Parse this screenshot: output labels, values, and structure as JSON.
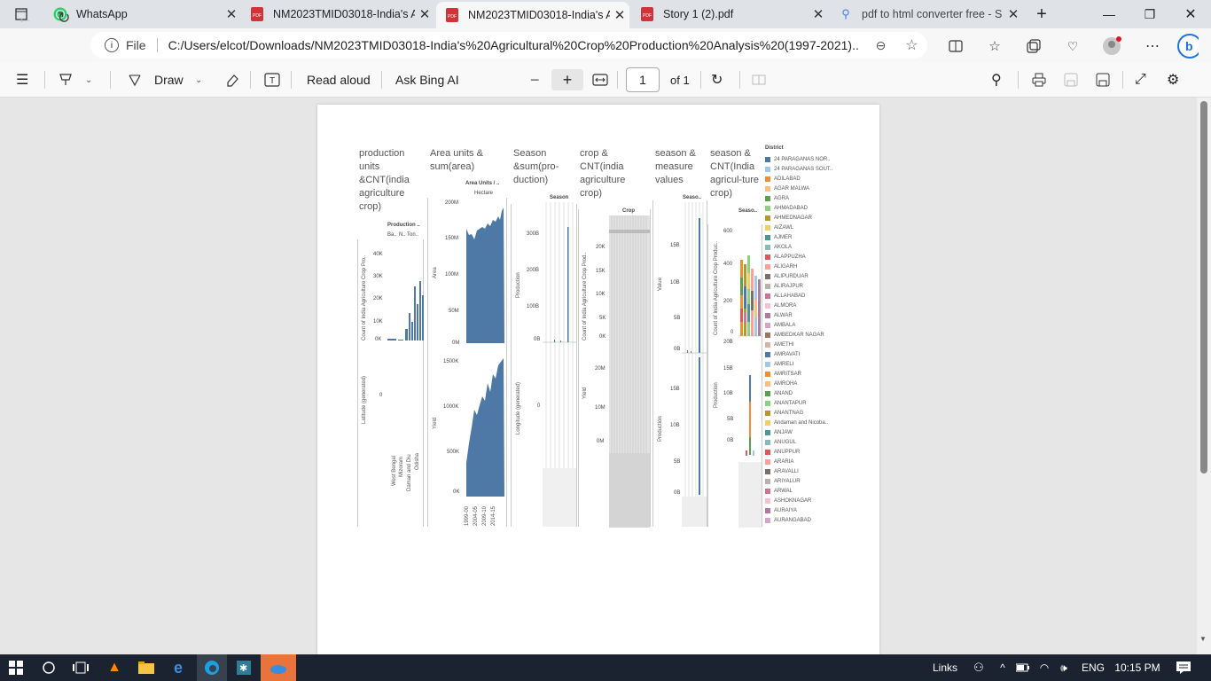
{
  "tabs": [
    {
      "title": "WhatsApp",
      "icon": "whatsapp-icon",
      "active": false
    },
    {
      "title": "NM2023TMID03018-India's A",
      "icon": "pdf-icon",
      "active": false
    },
    {
      "title": "NM2023TMID03018-India's A",
      "icon": "pdf-icon",
      "active": true
    },
    {
      "title": "Story 1 (2).pdf",
      "icon": "pdf-icon",
      "active": false
    },
    {
      "title": "pdf to html converter free - S",
      "icon": "search-icon",
      "active": false
    }
  ],
  "address": {
    "scheme_label": "File",
    "url": "C:/Users/elcot/Downloads/NM2023TMID03018-India's%20Agricultural%20Crop%20Production%20Analysis%20(1997-2021)..."
  },
  "pdf_toolbar": {
    "draw_label": "Draw",
    "read_aloud_label": "Read aloud",
    "ask_bing_label": "Ask Bing AI",
    "page_number": "1",
    "page_total": "of 1"
  },
  "dashboard": {
    "col1": {
      "title": "production units &CNT(india agriculture crop)",
      "header": "Production ..",
      "sub": [
        "Ba..",
        "N..",
        "Ton.."
      ],
      "ylabel1": "Count of India Agriculture Crop Pro..",
      "yticks1": [
        "40K",
        "30K",
        "20K",
        "10K",
        "0K"
      ],
      "ylabel2": "Latitude (generated)",
      "ytick2": "0",
      "xlabels": [
        "West Bengal",
        "Mizoram",
        "Daman and Diu",
        "Odisha"
      ]
    },
    "col2": {
      "title": "Area units & sum(area)",
      "header": "Area Units / ..",
      "sub": "Hectare",
      "ylabel1": "Area",
      "yticks1": [
        "200M",
        "150M",
        "100M",
        "50M",
        "0M"
      ],
      "ylabel2": "Yield",
      "yticks2": [
        "1500K",
        "1000K",
        "500K",
        "0K"
      ],
      "xlabels": [
        "1999-00",
        "2004-05",
        "2009-10",
        "2014-15"
      ]
    },
    "col3": {
      "title": "Season &sum(pro-duction)",
      "header": "Season",
      "ylabel1": "Production",
      "yticks1": [
        "300B",
        "200B",
        "100B",
        "0B"
      ],
      "ylabel2": "Longitude (generated)",
      "ytick2": "0"
    },
    "col4": {
      "title": "crop & CNT(india agriculture crop)",
      "header": "Crop",
      "ylabel1": "Count of India Agriculture Crop Prod..",
      "yticks1": [
        "20K",
        "15K",
        "10K",
        "5K",
        "0K"
      ],
      "ylabel2": "Yield",
      "yticks2": [
        "20M",
        "10M",
        "0M"
      ]
    },
    "col5": {
      "title": "season & measure values",
      "header": "Seaso..",
      "ylabel1": "Value",
      "yticks1": [
        "15B",
        "10B",
        "5B",
        "0B"
      ],
      "ylabel2": "Production",
      "yticks2": [
        "15B",
        "10B",
        "5B",
        "0B"
      ]
    },
    "col6": {
      "title": "season & CNT(India agricul-ture crop)",
      "header": "Seaso..",
      "ylabel1": "Count of India Agriculture Crop Produc..",
      "yticks1": [
        "600",
        "400",
        "200",
        "0"
      ],
      "ylabel2": "Production",
      "yticks2": [
        "20B",
        "15B",
        "10B",
        "5B",
        "0B"
      ]
    },
    "legend": {
      "title": "District",
      "items": [
        {
          "name": "24 PARAGANAS NOR..",
          "color": "#4e79a7"
        },
        {
          "name": "24 PARAGANAS SOUT..",
          "color": "#a0cbe8"
        },
        {
          "name": "ADILABAD",
          "color": "#f28e2b"
        },
        {
          "name": "AGAR MALWA",
          "color": "#ffbe7d"
        },
        {
          "name": "AGRA",
          "color": "#59a14f"
        },
        {
          "name": "AHMADABAD",
          "color": "#8cd17d"
        },
        {
          "name": "AHMEDNAGAR",
          "color": "#b6992d"
        },
        {
          "name": "AIZAWL",
          "color": "#f1ce63"
        },
        {
          "name": "AJMER",
          "color": "#499894"
        },
        {
          "name": "AKOLA",
          "color": "#86bcb6"
        },
        {
          "name": "ALAPPUZHA",
          "color": "#e15759"
        },
        {
          "name": "ALIGARH",
          "color": "#ff9d9a"
        },
        {
          "name": "ALIPURDUAR",
          "color": "#79706e"
        },
        {
          "name": "ALIRAJPUR",
          "color": "#bab0ac"
        },
        {
          "name": "ALLAHABAD",
          "color": "#d37295"
        },
        {
          "name": "ALMORA",
          "color": "#fabfd2"
        },
        {
          "name": "ALWAR",
          "color": "#b07aa1"
        },
        {
          "name": "AMBALA",
          "color": "#d4a6c8"
        },
        {
          "name": "AMBEDKAR NAGAR",
          "color": "#9d7660"
        },
        {
          "name": "AMETHI",
          "color": "#d7b5a6"
        },
        {
          "name": "AMRAVATI",
          "color": "#4e79a7"
        },
        {
          "name": "AMRELI",
          "color": "#a0cbe8"
        },
        {
          "name": "AMRITSAR",
          "color": "#f28e2b"
        },
        {
          "name": "AMROHA",
          "color": "#ffbe7d"
        },
        {
          "name": "ANAND",
          "color": "#59a14f"
        },
        {
          "name": "ANANTAPUR",
          "color": "#8cd17d"
        },
        {
          "name": "ANANTNAG",
          "color": "#b6992d"
        },
        {
          "name": "Andaman and Nicoba..",
          "color": "#f1ce63"
        },
        {
          "name": "ANJAW",
          "color": "#499894"
        },
        {
          "name": "ANUGUL",
          "color": "#86bcb6"
        },
        {
          "name": "ANUPPUR",
          "color": "#e15759"
        },
        {
          "name": "ARARIA",
          "color": "#ff9d9a"
        },
        {
          "name": "ARAVALLI",
          "color": "#79706e"
        },
        {
          "name": "ARIYALUR",
          "color": "#bab0ac"
        },
        {
          "name": "ARWAL",
          "color": "#d37295"
        },
        {
          "name": "ASHOKNAGAR",
          "color": "#fabfd2"
        },
        {
          "name": "AURAIYA",
          "color": "#b07aa1"
        },
        {
          "name": "AURANGABAD",
          "color": "#d4a6c8"
        }
      ]
    }
  },
  "taskbar": {
    "links_label": "Links",
    "lang": "ENG",
    "time": "10:15 PM"
  },
  "colors": {
    "bar": "#4e79a7"
  }
}
